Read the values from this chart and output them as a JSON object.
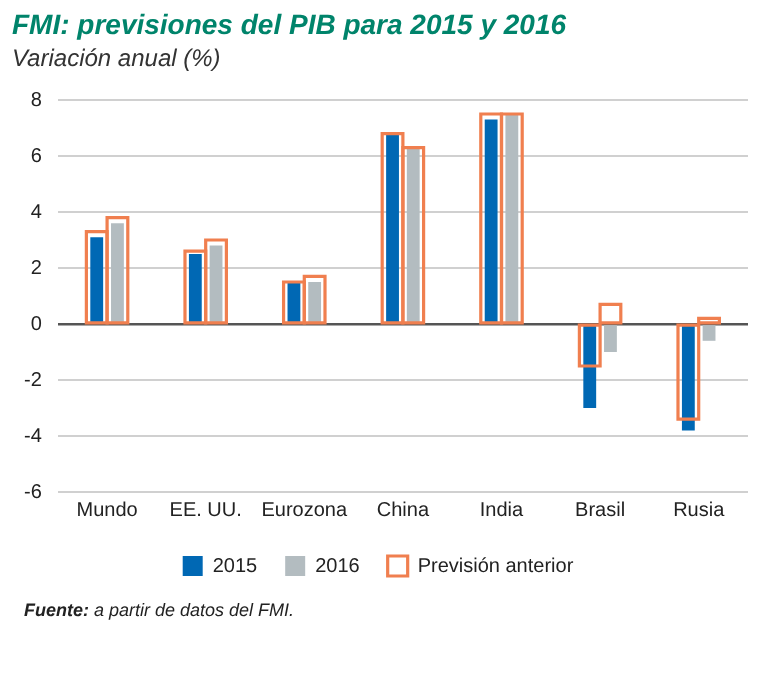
{
  "chart_data": {
    "type": "bar",
    "title": "FMI: previsiones del PIB para 2015 y 2016",
    "subtitle": "Variación anual (%)",
    "categories": [
      "Mundo",
      "EE. UU.",
      "Eurozona",
      "China",
      "India",
      "Brasil",
      "Rusia"
    ],
    "series": [
      {
        "name": "2015",
        "color": "#0068b4",
        "values": [
          3.1,
          2.5,
          1.5,
          6.8,
          7.3,
          -3.0,
          -3.8
        ]
      },
      {
        "name": "2016",
        "color": "#b3bcc0",
        "values": [
          3.6,
          2.8,
          1.5,
          6.3,
          7.5,
          -1.0,
          -0.6
        ]
      },
      {
        "name": "Previsión anterior",
        "color": "#f07f4f",
        "line_style": "solid",
        "values": [
          3.3,
          2.6,
          1.5,
          6.8,
          7.5,
          -1.5,
          -3.4
        ]
      },
      {
        "color": "#f07f4f",
        "line_style": "solid",
        "values": [
          3.8,
          3.0,
          1.7,
          6.3,
          7.5,
          0.7,
          0.2
        ]
      }
    ],
    "ylim": [
      -6,
      8
    ],
    "yticks": [
      -6,
      -4,
      -2,
      0,
      2,
      4,
      6,
      8
    ],
    "grid": "y",
    "legend": "bottom",
    "annotations": [
      "Fuente: a partir de datos del FMI."
    ]
  }
}
